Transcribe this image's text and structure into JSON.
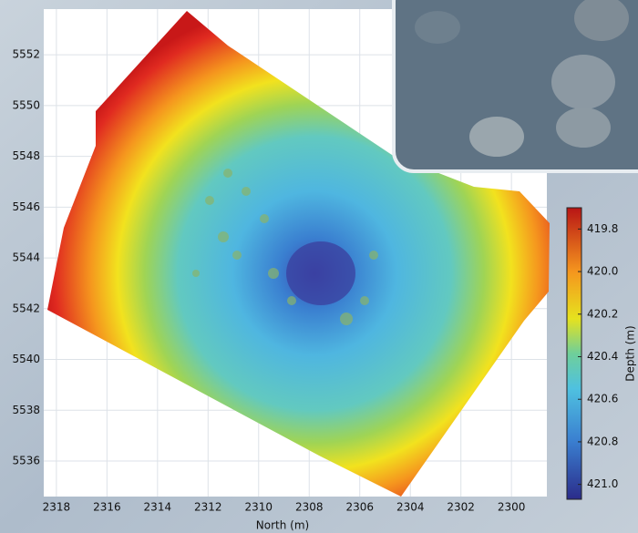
{
  "chart_data": {
    "type": "map",
    "x_label": "North (m)",
    "xlim": [
      2318.5,
      2298.6
    ],
    "xticks": [
      2318,
      2316,
      2314,
      2312,
      2310,
      2308,
      2306,
      2304,
      2302,
      2300
    ],
    "ylim": [
      5534.6,
      5553.8
    ],
    "yticks": [
      5536,
      5538,
      5540,
      5542,
      5544,
      5546,
      5548,
      5550,
      5552
    ],
    "grid": true,
    "colorbar": {
      "label": "Depth (m)",
      "lim": [
        419.7,
        421.07
      ],
      "ticks": [
        419.8,
        {
          "value": 420,
          "label": "420.0"
        },
        420.2,
        420.4,
        420.6,
        420.8,
        {
          "value": 421,
          "label": "421.0"
        }
      ]
    }
  }
}
